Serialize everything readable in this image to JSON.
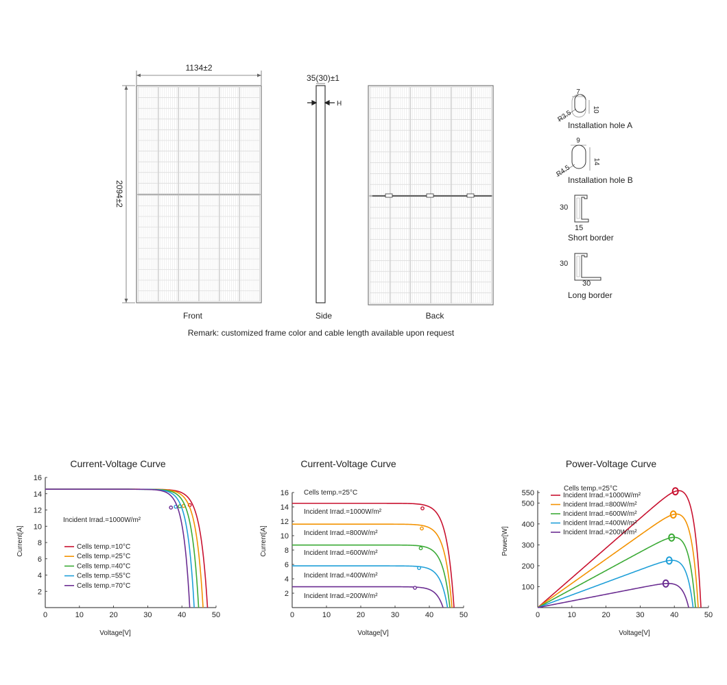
{
  "drawing": {
    "width_dim": "1134±2",
    "height_dim": "2094±2",
    "thickness_dim": "35(30)±1",
    "h_marker": "H",
    "front_label": "Front",
    "side_label": "Side",
    "back_label": "Back",
    "remark": "Remark: customized frame color and cable length available upon request"
  },
  "details": {
    "hole_a": {
      "w": "7",
      "h": "10",
      "r": "R3.5",
      "label": "Installation hole A"
    },
    "hole_b": {
      "w": "9",
      "h": "14",
      "r": "R4.5",
      "label": "Installation hole B"
    },
    "short_border": {
      "h": "30",
      "w": "15",
      "label": "Short border"
    },
    "long_border": {
      "h": "30",
      "w": "30",
      "label": "Long border"
    }
  },
  "colors": {
    "c1": "#c8102e",
    "c2": "#f39200",
    "c3": "#3aaa35",
    "c4": "#1e9fd8",
    "c5": "#6a2c91"
  },
  "chart_data": [
    {
      "type": "line",
      "title": "Current-Voltage Curve",
      "xlabel": "Voltage[V]",
      "ylabel": "Current[A]",
      "xlim": [
        0,
        50
      ],
      "ylim": [
        0,
        16
      ],
      "xticks": [
        0,
        10,
        20,
        30,
        40,
        50
      ],
      "yticks": [
        2,
        4,
        6,
        8,
        10,
        12,
        14,
        16
      ],
      "annotation": "Incident Irrad.=1000W/m²",
      "series": [
        {
          "name": "Cells temp.=10°C",
          "isc": 14.55,
          "voc": 47.5,
          "mpp": [
            42.3,
            12.6
          ]
        },
        {
          "name": "Cells temp.=25°C",
          "isc": 14.55,
          "voc": 46.2,
          "mpp": [
            40.5,
            12.5
          ]
        },
        {
          "name": "Cells temp.=40°C",
          "isc": 14.55,
          "voc": 44.9,
          "mpp": [
            39.4,
            12.45
          ]
        },
        {
          "name": "Cells temp.=55°C",
          "isc": 14.55,
          "voc": 43.6,
          "mpp": [
            38.2,
            12.4
          ]
        },
        {
          "name": "Cells temp.=70°C",
          "isc": 14.55,
          "voc": 42.3,
          "mpp": [
            36.8,
            12.3
          ]
        }
      ]
    },
    {
      "type": "line",
      "title": "Current-Voltage Curve",
      "xlabel": "Voltage[V]",
      "ylabel": "Current[A]",
      "xlim": [
        0,
        50
      ],
      "ylim": [
        0,
        16
      ],
      "xticks": [
        0,
        10,
        20,
        30,
        40,
        50
      ],
      "yticks": [
        2,
        4,
        6,
        8,
        10,
        12,
        14,
        16
      ],
      "annotation": "Cells temp.=25°C",
      "series": [
        {
          "name": "Incident Irrad.=1000W/m²",
          "isc": 14.5,
          "voc": 47.2,
          "mpp": [
            38.0,
            13.8
          ]
        },
        {
          "name": "Incident Irrad.=800W/m²",
          "isc": 11.6,
          "voc": 46.6,
          "mpp": [
            37.8,
            11.0
          ]
        },
        {
          "name": "Incident Irrad.=600W/m²",
          "isc": 8.7,
          "voc": 46.0,
          "mpp": [
            37.5,
            8.25
          ]
        },
        {
          "name": "Incident Irrad.=400W/m²",
          "isc": 5.8,
          "voc": 45.3,
          "mpp": [
            37.0,
            5.5
          ]
        },
        {
          "name": "Incident Irrad.=200W/m²",
          "isc": 2.9,
          "voc": 44.0,
          "mpp": [
            35.8,
            2.75
          ]
        }
      ]
    },
    {
      "type": "line",
      "title": "Power-Voltage Curve",
      "xlabel": "Voltage[V]",
      "ylabel": "Power[W]",
      "xlim": [
        0,
        50
      ],
      "ylim": [
        0,
        560
      ],
      "xticks": [
        0,
        10,
        20,
        30,
        40,
        50
      ],
      "yticks": [
        100,
        200,
        300,
        400,
        500,
        550
      ],
      "annotation": "Cells temp.=25°C",
      "series": [
        {
          "name": "Incident Irrad.=1000W/m²",
          "isc": 14.5,
          "voc": 47.8,
          "mpp": [
            40.3,
            556
          ]
        },
        {
          "name": "Incident Irrad.=800W/m²",
          "isc": 11.6,
          "voc": 47.0,
          "mpp": [
            39.7,
            445
          ]
        },
        {
          "name": "Incident Irrad.=600W/m²",
          "isc": 8.7,
          "voc": 46.2,
          "mpp": [
            39.2,
            335
          ]
        },
        {
          "name": "Incident Irrad.=400W/m²",
          "isc": 5.8,
          "voc": 45.5,
          "mpp": [
            38.5,
            225
          ]
        },
        {
          "name": "Incident Irrad.=200W/m²",
          "isc": 2.9,
          "voc": 44.2,
          "mpp": [
            37.5,
            115
          ]
        }
      ]
    }
  ]
}
